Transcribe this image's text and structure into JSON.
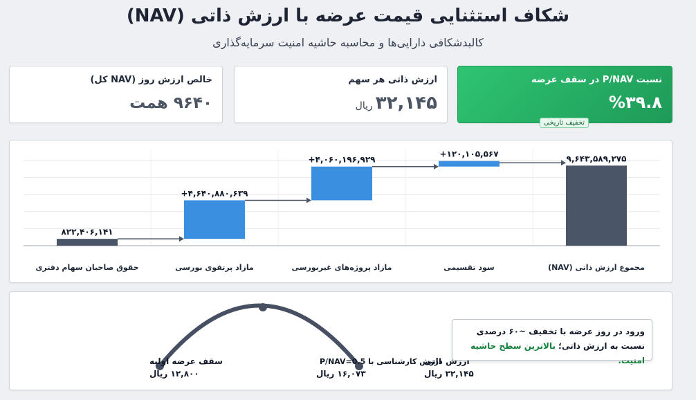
{
  "header": {
    "title": "شکاف استثنایی قیمت عرضه با ارزش ذاتی (NAV)",
    "subtitle": "کالبدشکافی دارایی‌ها و محاسبه حاشیه امنیت سرمایه‌گذاری"
  },
  "cards": {
    "nav_total": {
      "label": "خالص ارزش روز (NAV کل)",
      "value": "۹۶۴۰ همت"
    },
    "nav_per_share": {
      "label": "ارزش ذاتی هر سهم",
      "value": "۳۲,۱۴۵",
      "unit": "ریال"
    },
    "ratio": {
      "label": "نسبت P/NAV در سقف عرضه",
      "value": "%۳۹.۸",
      "badge": "تخفیف تاریخی"
    }
  },
  "chart_data": {
    "type": "waterfall",
    "categories": [
      "حقوق صاحبان سهام دفتری",
      "مازاد پرتفوی بورسی",
      "مازاد پروژه‌های غیربورسی",
      "سود تقسیمی",
      "مجموع ارزش ذاتی (NAV)"
    ],
    "values": [
      822406141,
      4640880639,
      4060196929,
      120105567,
      9643589275
    ],
    "value_labels": [
      "۸۲۲,۴۰۶,۱۴۱",
      "+۴,۶۴۰,۸۸۰,۶۳۹",
      "+۴,۰۶۰,۱۹۶,۹۲۹",
      "+۱۲۰,۱۰۵,۵۶۷",
      "۹,۶۴۳,۵۸۹,۲۷۵"
    ],
    "bar_kind": [
      "base",
      "increase",
      "increase",
      "increase",
      "total"
    ],
    "ylim": [
      0,
      11500000000
    ],
    "grid": true,
    "colors": {
      "base": "#4b5568",
      "increase": "#3b8fe0",
      "total": "#4b5568"
    }
  },
  "gauge": {
    "points": [
      {
        "label": "سقف عرضه اولیه",
        "value": "۱۲,۸۰۰ ریال"
      },
      {
        "label": "ارزش کارشناسی با P/NAV=0.5",
        "value": "۱۶,۰۷۳ ریال"
      },
      {
        "label": "ارزش ذاتی",
        "value": "۳۲,۱۴۵ ریال"
      }
    ]
  },
  "note": {
    "text_a": "ورود در روز عرضه با تخفیف ~۶۰ درصدی نسبت به ارزش ذاتی؛",
    "text_b": "بالاترین سطح حاشیه امنیت."
  }
}
